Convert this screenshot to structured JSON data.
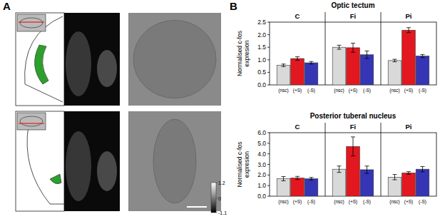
{
  "figure": {
    "panel_labels": [
      "A",
      "B"
    ],
    "colorbar": {
      "range": [
        -1.1,
        1.2
      ],
      "ticks": [
        1.2,
        0,
        -1.1
      ]
    }
  },
  "chart_data": [
    {
      "type": "bar",
      "title": "Optic tectum",
      "y_label": "Normalised c-fos expresion",
      "categories": [
        "C",
        "Fi",
        "Pi"
      ],
      "series": [
        {
          "name": "(nsc)",
          "color": "#d9d9d9",
          "values": [
            0.78,
            1.5,
            0.97
          ],
          "errors": [
            0.05,
            0.08,
            0.05
          ]
        },
        {
          "name": "(+S)",
          "color": "#e3171f",
          "values": [
            1.05,
            1.48,
            2.18
          ],
          "errors": [
            0.07,
            0.18,
            0.1
          ]
        },
        {
          "name": "(-S)",
          "color": "#3535b5",
          "values": [
            0.88,
            1.2,
            1.15
          ],
          "errors": [
            0.05,
            0.15,
            0.06
          ]
        }
      ],
      "ylim": [
        0,
        2.5
      ],
      "yticks": [
        {
          "value": 0,
          "label": "0.0"
        },
        0.5,
        {
          "value": 1,
          "label": "1.0"
        },
        1.5,
        {
          "value": 2,
          "label": "2.0"
        },
        2.5
      ],
      "grid": false
    },
    {
      "type": "bar",
      "title": "Posterior tuberal nucleus",
      "y_label": "Normalised c-fos expresion",
      "categories": [
        "C",
        "Fi",
        "Pi"
      ],
      "series": [
        {
          "name": "(nsc)",
          "color": "#d9d9d9",
          "values": [
            1.65,
            2.55,
            1.8
          ],
          "errors": [
            0.2,
            0.3,
            0.25
          ]
        },
        {
          "name": "(+S)",
          "color": "#e3171f",
          "values": [
            1.72,
            4.7,
            2.2
          ],
          "errors": [
            0.15,
            0.9,
            0.12
          ]
        },
        {
          "name": "(-S)",
          "color": "#3535b5",
          "values": [
            1.65,
            2.5,
            2.55
          ],
          "errors": [
            0.12,
            0.35,
            0.25
          ]
        }
      ],
      "ylim": [
        0,
        6
      ],
      "yticks": [
        {
          "value": 0,
          "label": "0.0"
        },
        {
          "value": 1,
          "label": "1.0"
        },
        {
          "value": 2,
          "label": "2.0"
        },
        {
          "value": 3,
          "label": "3.0"
        },
        {
          "value": 4,
          "label": "4.0"
        },
        {
          "value": 5,
          "label": "5.0"
        },
        {
          "value": 6,
          "label": "6.0"
        }
      ],
      "grid": false
    }
  ]
}
